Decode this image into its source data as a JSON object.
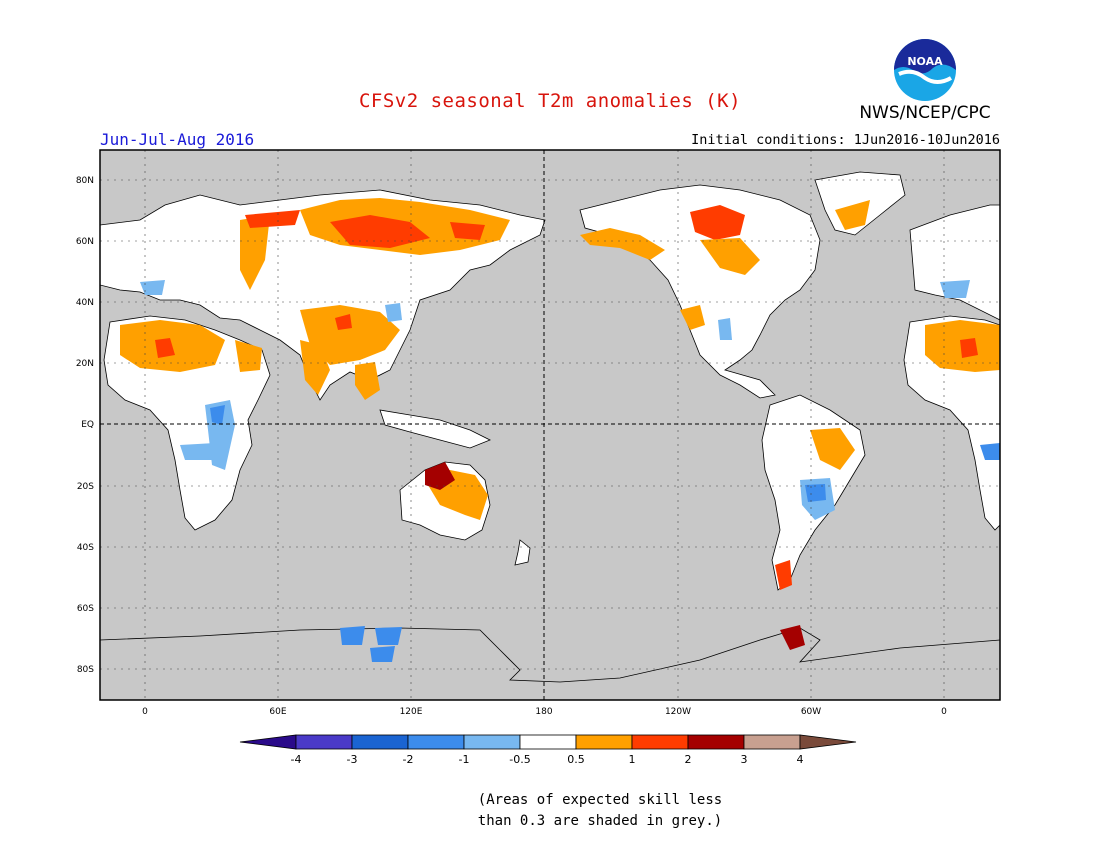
{
  "header": {
    "title": "CFSv2 seasonal T2m anomalies (K)",
    "agency": "NWS/NCEP/CPC",
    "season": "Jun-Jul-Aug 2016",
    "initial_conditions": "Initial conditions: 1Jun2016-10Jun2016",
    "logo_text": "NOAA"
  },
  "colors": {
    "title": "#d8140c",
    "season": "#1a1ad8",
    "grey_land": "#c8c8c8",
    "land_white": "#ffffff"
  },
  "map": {
    "lat_labels": [
      "80N",
      "60N",
      "40N",
      "20N",
      "EQ",
      "20S",
      "40S",
      "60S",
      "80S"
    ],
    "lon_labels": [
      "0",
      "60E",
      "120E",
      "180",
      "120W",
      "60W",
      "0"
    ],
    "projection": "cylindrical, centered on 180"
  },
  "legend": {
    "levels": [
      "-4",
      "-3",
      "-2",
      "-1",
      "-0.5",
      "0.5",
      "1",
      "2",
      "3",
      "4"
    ],
    "colors": [
      "#2a0a8a",
      "#4a3ac8",
      "#1a64d2",
      "#3c8cec",
      "#78b8f0",
      "#ffffff",
      "#ffa000",
      "#ff3c00",
      "#a40000",
      "#c8a090",
      "#7a4a3a"
    ]
  },
  "note": {
    "line1": "(Areas of expected skill less",
    "line2": "than 0.3 are shaded in grey.)"
  }
}
